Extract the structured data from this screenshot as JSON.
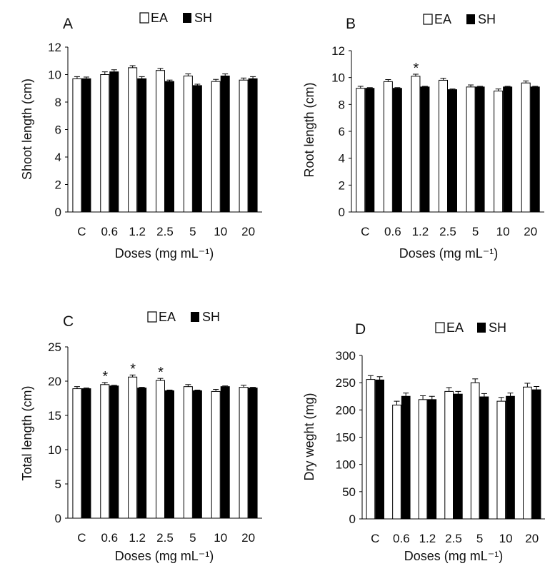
{
  "legend": {
    "ea": "EA",
    "sh": "SH"
  },
  "chart_data": [
    {
      "type": "bar",
      "panel": "A",
      "categories": [
        "C",
        "0.6",
        "1.2",
        "2.5",
        "5",
        "10",
        "20"
      ],
      "xlabel": "Doses (mg mL⁻¹)",
      "ylabel": "Shoot length (cm)",
      "ylim": [
        0,
        12
      ],
      "yticks": [
        0,
        2,
        4,
        6,
        8,
        10,
        12
      ],
      "series": [
        {
          "name": "EA",
          "values": [
            9.7,
            10.0,
            10.5,
            10.3,
            9.9,
            9.5,
            9.6
          ],
          "errors": [
            0.15,
            0.2,
            0.15,
            0.15,
            0.15,
            0.15,
            0.15
          ]
        },
        {
          "name": "SH",
          "values": [
            9.7,
            10.2,
            9.7,
            9.5,
            9.2,
            9.9,
            9.7
          ],
          "errors": [
            0.12,
            0.15,
            0.15,
            0.1,
            0.1,
            0.15,
            0.15
          ]
        }
      ],
      "significance": []
    },
    {
      "type": "bar",
      "panel": "B",
      "categories": [
        "C",
        "0.6",
        "1.2",
        "2.5",
        "5",
        "10",
        "20"
      ],
      "xlabel": "Doses (mg mL⁻¹)",
      "ylabel": "Root length (cm)",
      "ylim": [
        0,
        12
      ],
      "yticks": [
        0,
        2,
        4,
        6,
        8,
        10,
        12
      ],
      "series": [
        {
          "name": "EA",
          "values": [
            9.2,
            9.7,
            10.1,
            9.8,
            9.3,
            9.0,
            9.6
          ],
          "errors": [
            0.15,
            0.15,
            0.15,
            0.15,
            0.15,
            0.15,
            0.15
          ]
        },
        {
          "name": "SH",
          "values": [
            9.2,
            9.2,
            9.3,
            9.1,
            9.3,
            9.3,
            9.3
          ],
          "errors": [
            0.05,
            0.05,
            0.05,
            0.05,
            0.05,
            0.05,
            0.05
          ]
        }
      ],
      "significance": [
        {
          "label": "*",
          "category": 2
        }
      ]
    },
    {
      "type": "bar",
      "panel": "C",
      "categories": [
        "C",
        "0.6",
        "1.2",
        "2.5",
        "5",
        "10",
        "20"
      ],
      "xlabel": "Doses (mg mL⁻¹)",
      "ylabel": "Total length (cm)",
      "ylim": [
        0,
        25
      ],
      "yticks": [
        0,
        5,
        10,
        15,
        20,
        25
      ],
      "series": [
        {
          "name": "EA",
          "values": [
            18.9,
            19.5,
            20.6,
            20.1,
            19.2,
            18.5,
            19.1
          ],
          "errors": [
            0.3,
            0.3,
            0.3,
            0.3,
            0.3,
            0.3,
            0.3
          ]
        },
        {
          "name": "SH",
          "values": [
            18.9,
            19.3,
            19.0,
            18.6,
            18.6,
            19.2,
            19.0
          ],
          "errors": [
            0.1,
            0.1,
            0.1,
            0.1,
            0.1,
            0.1,
            0.1
          ]
        }
      ],
      "significance": [
        {
          "label": "*",
          "category": 1
        },
        {
          "label": "*",
          "category": 2
        },
        {
          "label": "*",
          "category": 3
        }
      ]
    },
    {
      "type": "bar",
      "panel": "D",
      "categories": [
        "C",
        "0.6",
        "1.2",
        "2.5",
        "5",
        "10",
        "20"
      ],
      "xlabel": "Doses (mg mL⁻¹)",
      "ylabel": "Dry weght (mg)",
      "ylim": [
        0,
        300
      ],
      "yticks": [
        0,
        50,
        100,
        150,
        200,
        250,
        300
      ],
      "series": [
        {
          "name": "EA",
          "values": [
            256,
            209,
            219,
            234,
            250,
            216,
            242
          ],
          "errors": [
            7,
            7,
            7,
            7,
            7,
            7,
            7
          ]
        },
        {
          "name": "SH",
          "values": [
            255,
            225,
            219,
            229,
            224,
            225,
            237
          ],
          "errors": [
            6,
            6,
            6,
            5,
            6,
            6,
            6
          ]
        }
      ],
      "significance": []
    }
  ]
}
